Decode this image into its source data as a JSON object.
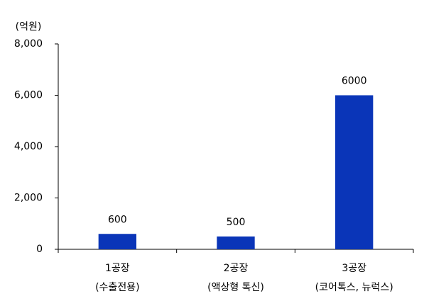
{
  "chart_data": {
    "type": "bar",
    "y_label": "(억원)",
    "categories": [
      [
        "1공장",
        "(수출전용)"
      ],
      [
        "2공장",
        "(액상형 톡신)"
      ],
      [
        "3공장",
        "(코어톡스, 뉴럭스)"
      ]
    ],
    "values": [
      600,
      500,
      6000
    ],
    "color": "#0a35b8",
    "ylim": [
      0,
      8000
    ],
    "yticks": [
      0,
      {
        "value": 2000,
        "label": "2,000"
      },
      {
        "value": 4000,
        "label": "4,000"
      },
      {
        "value": 6000,
        "label": "6,000"
      },
      {
        "value": 8000,
        "label": "8,000"
      }
    ],
    "grid": false
  }
}
